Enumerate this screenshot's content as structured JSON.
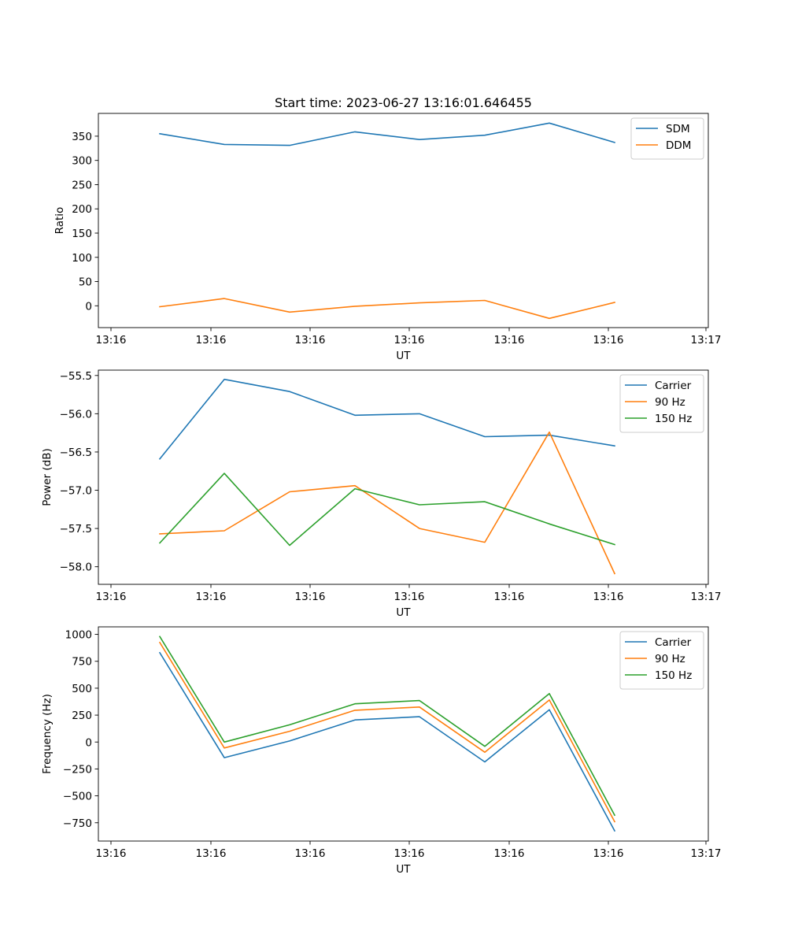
{
  "figure": {
    "title": "Start time: 2023-06-27 13:16:01.646455"
  },
  "chart_data": [
    {
      "type": "line",
      "title": "Start time: 2023-06-27 13:16:01.646455",
      "xlabel": "UT",
      "ylabel": "Ratio",
      "x_tick_labels": [
        "13:16",
        "13:16",
        "13:16",
        "13:16",
        "13:16",
        "13:16",
        "13:17"
      ],
      "yticks": [
        0,
        50,
        100,
        150,
        200,
        250,
        300,
        350
      ],
      "ylim": [
        -45,
        397
      ],
      "grid": false,
      "legend": "top-right",
      "series": [
        {
          "name": "SDM",
          "color": "#1f77b4",
          "values": [
            355,
            333,
            331,
            359,
            343,
            352,
            377,
            337
          ]
        },
        {
          "name": "DDM",
          "color": "#ff7f0e",
          "values": [
            -2,
            15,
            -13,
            -1,
            6,
            11,
            -26,
            7
          ]
        }
      ]
    },
    {
      "type": "line",
      "title": "",
      "xlabel": "UT",
      "ylabel": "Power (dB)",
      "x_tick_labels": [
        "13:16",
        "13:16",
        "13:16",
        "13:16",
        "13:16",
        "13:16",
        "13:17"
      ],
      "yticks": [
        -58.0,
        -57.5,
        -57.0,
        -56.5,
        -56.0,
        -55.5
      ],
      "ylim": [
        -58.23,
        -55.43
      ],
      "grid": false,
      "legend": "top-right",
      "series": [
        {
          "name": "Carrier",
          "color": "#1f77b4",
          "values": [
            -56.59,
            -55.55,
            -55.71,
            -56.02,
            -56.0,
            -56.3,
            -56.28,
            -56.42
          ]
        },
        {
          "name": "90 Hz",
          "color": "#ff7f0e",
          "values": [
            -57.57,
            -57.53,
            -57.02,
            -56.94,
            -57.5,
            -57.68,
            -56.24,
            -58.09
          ]
        },
        {
          "name": "150 Hz",
          "color": "#2ca02c",
          "values": [
            -57.69,
            -56.78,
            -57.72,
            -56.98,
            -57.19,
            -57.15,
            -57.44,
            -57.71
          ]
        }
      ]
    },
    {
      "type": "line",
      "title": "",
      "xlabel": "UT",
      "ylabel": "Frequency (Hz)",
      "x_tick_labels": [
        "13:16",
        "13:16",
        "13:16",
        "13:16",
        "13:16",
        "13:16",
        "13:17"
      ],
      "yticks": [
        -750,
        -500,
        -250,
        0,
        250,
        500,
        750,
        1000
      ],
      "ylim": [
        -920,
        1070
      ],
      "grid": false,
      "legend": "top-right",
      "series": [
        {
          "name": "Carrier",
          "color": "#1f77b4",
          "values": [
            830,
            -145,
            10,
            205,
            235,
            -185,
            300,
            -825
          ]
        },
        {
          "name": "90 Hz",
          "color": "#ff7f0e",
          "values": [
            925,
            -55,
            100,
            295,
            325,
            -95,
            390,
            -740
          ]
        },
        {
          "name": "150 Hz",
          "color": "#2ca02c",
          "values": [
            980,
            0,
            160,
            355,
            385,
            -40,
            450,
            -680
          ]
        }
      ]
    }
  ]
}
